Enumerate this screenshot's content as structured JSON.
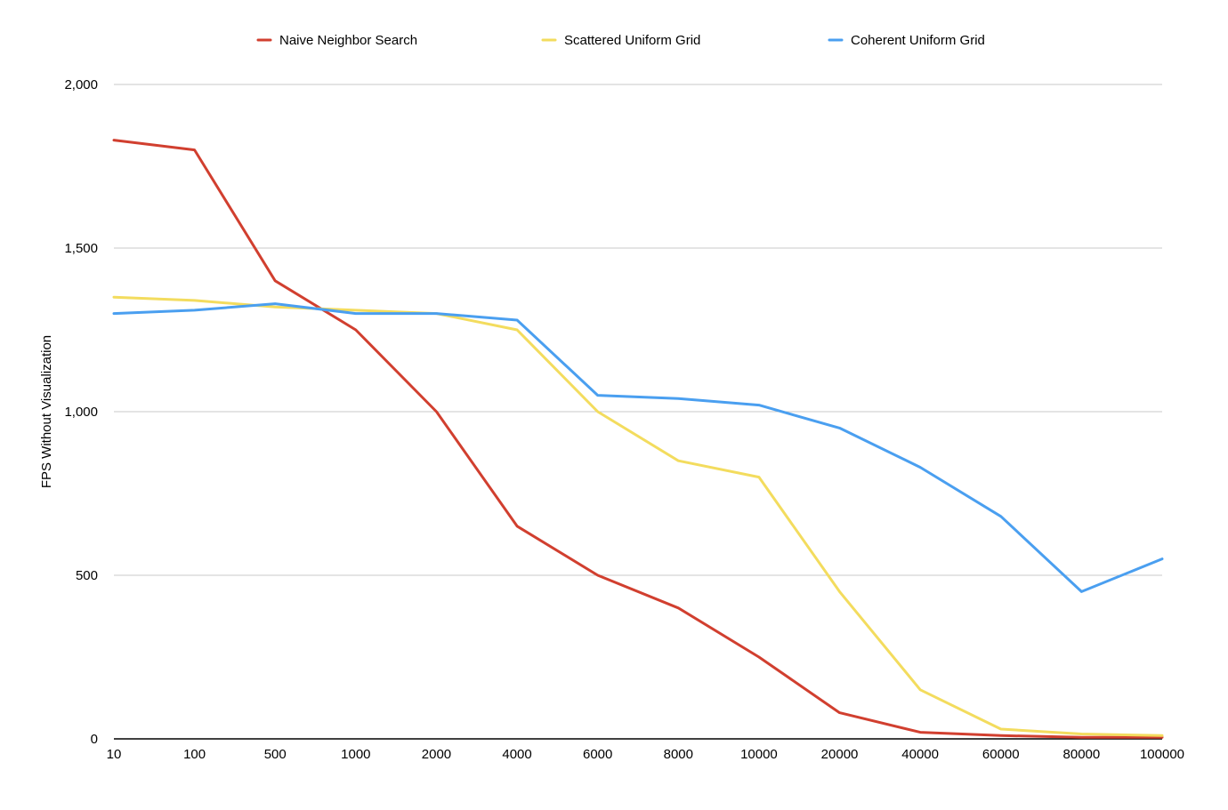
{
  "chart_data": {
    "type": "line",
    "title": "",
    "xlabel": "",
    "ylabel": "FPS Without Visualization",
    "categories": [
      "10",
      "100",
      "500",
      "1000",
      "2000",
      "4000",
      "6000",
      "8000",
      "10000",
      "20000",
      "40000",
      "60000",
      "80000",
      "100000"
    ],
    "ylim": [
      0,
      2000
    ],
    "yticks": [
      0,
      500,
      1000,
      1500,
      2000
    ],
    "ytick_labels": [
      "0",
      "500",
      "1,000",
      "1,500",
      "2,000"
    ],
    "grid": true,
    "legend_position": "top",
    "series": [
      {
        "name": "Naive Neighbor Search",
        "color": "#d13f2f",
        "values": [
          1830,
          1800,
          1400,
          1250,
          1000,
          650,
          500,
          400,
          250,
          80,
          20,
          10,
          5,
          5
        ]
      },
      {
        "name": "Scattered Uniform Grid",
        "color": "#f3dc5e",
        "values": [
          1350,
          1340,
          1320,
          1310,
          1300,
          1250,
          1000,
          850,
          800,
          450,
          150,
          30,
          15,
          10
        ]
      },
      {
        "name": "Coherent Uniform Grid",
        "color": "#4a9ff0",
        "values": [
          1300,
          1310,
          1330,
          1300,
          1300,
          1280,
          1050,
          1040,
          1020,
          950,
          830,
          680,
          450,
          550
        ]
      }
    ]
  }
}
